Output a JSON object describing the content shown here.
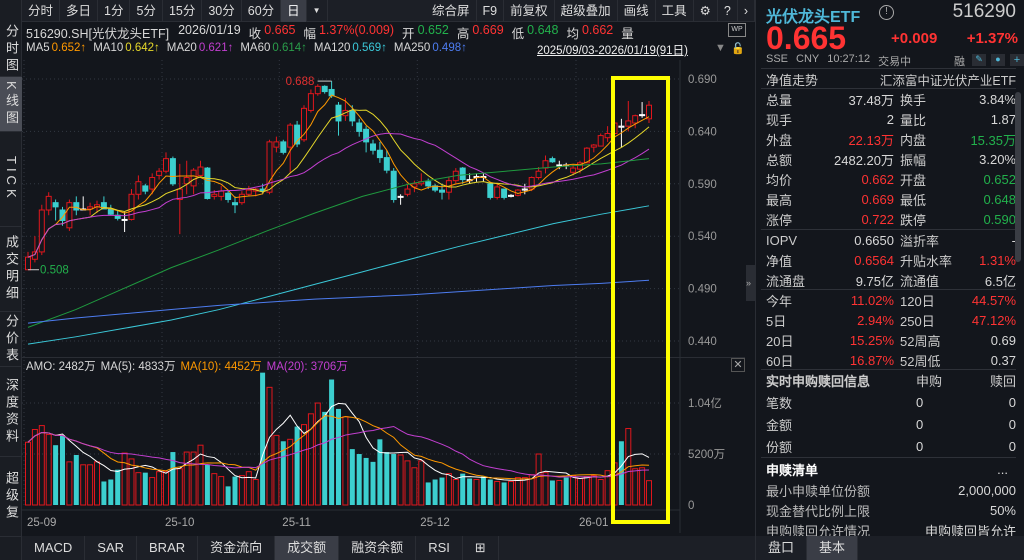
{
  "toolbar": {
    "periods": [
      "分时",
      "多日",
      "1分",
      "5分",
      "15分",
      "30分",
      "60分",
      "日"
    ],
    "active": "日",
    "right": [
      "综合屏",
      "F9",
      "前复权",
      "超级叠加",
      "画线",
      "工具"
    ]
  },
  "left_tabs": [
    "分时图",
    "K线图",
    "TICK",
    "成交明细",
    "分价表",
    "深度资料",
    "超级复"
  ],
  "quote_line": {
    "symbol": "516290.SH[光伏龙头ETF]",
    "date": "2026/01/19",
    "close_label": "收",
    "close": "0.665",
    "chg_label": "幅",
    "chg": "1.37%(0.009)",
    "open_label": "开",
    "open": "0.652",
    "high_label": "高",
    "high": "0.669",
    "low_label": "低",
    "low": "0.648",
    "avg_label": "均",
    "avg": "0.662",
    "vol_label": "量"
  },
  "ma_line": {
    "items": [
      {
        "label": "MA5",
        "value": "0.652↑",
        "color": "#ff9900"
      },
      {
        "label": "MA10",
        "value": "0.642↑",
        "color": "#e6d82a"
      },
      {
        "label": "MA20",
        "value": "0.621↑",
        "color": "#c23fd0"
      },
      {
        "label": "MA60",
        "value": "0.614↑",
        "color": "#2a9d4a"
      },
      {
        "label": "MA120",
        "value": "0.569↑",
        "color": "#3bc8d8"
      },
      {
        "label": "MA250",
        "value": "0.498↑",
        "color": "#4d7cf0"
      }
    ],
    "range": "2025/09/03-2026/01/19(91日)"
  },
  "chart_data": {
    "type": "candlestick",
    "price_ticks": [
      "0.690",
      "0.640",
      "0.590",
      "0.540",
      "0.490",
      "0.440"
    ],
    "ylim": [
      0.44,
      0.69
    ],
    "max_label": "0.688",
    "min_label": "0.508",
    "candles": [
      [
        0.508,
        0.525,
        0.508,
        0.52
      ],
      [
        0.518,
        0.54,
        0.515,
        0.525
      ],
      [
        0.525,
        0.57,
        0.522,
        0.565
      ],
      [
        0.565,
        0.582,
        0.56,
        0.578
      ],
      [
        0.572,
        0.575,
        0.555,
        0.568
      ],
      [
        0.565,
        0.568,
        0.55,
        0.555
      ],
      [
        0.548,
        0.575,
        0.545,
        0.572
      ],
      [
        0.572,
        0.578,
        0.56,
        0.565
      ],
      [
        0.566,
        0.578,
        0.565,
        0.566
      ],
      [
        0.566,
        0.572,
        0.56,
        0.568
      ],
      [
        0.568,
        0.574,
        0.562,
        0.57
      ],
      [
        0.572,
        0.578,
        0.566,
        0.566
      ],
      [
        0.566,
        0.57,
        0.56,
        0.561
      ],
      [
        0.56,
        0.565,
        0.555,
        0.557
      ],
      [
        0.556,
        0.563,
        0.544,
        0.556
      ],
      [
        0.556,
        0.585,
        0.555,
        0.58
      ],
      [
        0.58,
        0.598,
        0.575,
        0.592
      ],
      [
        0.588,
        0.59,
        0.58,
        0.583
      ],
      [
        0.585,
        0.6,
        0.58,
        0.596
      ],
      [
        0.598,
        0.605,
        0.594,
        0.602
      ],
      [
        0.602,
        0.62,
        0.6,
        0.614
      ],
      [
        0.614,
        0.616,
        0.588,
        0.59
      ],
      [
        0.575,
        0.609,
        0.542,
        0.585
      ],
      [
        0.59,
        0.612,
        0.58,
        0.596
      ],
      [
        0.588,
        0.605,
        0.58,
        0.603
      ],
      [
        0.598,
        0.612,
        0.598,
        0.606
      ],
      [
        0.605,
        0.606,
        0.575,
        0.576
      ],
      [
        0.578,
        0.584,
        0.575,
        0.58
      ],
      [
        0.578,
        0.588,
        0.574,
        0.583
      ],
      [
        0.581,
        0.584,
        0.572,
        0.575
      ],
      [
        0.572,
        0.578,
        0.562,
        0.57
      ],
      [
        0.572,
        0.583,
        0.57,
        0.58
      ],
      [
        0.58,
        0.588,
        0.578,
        0.584
      ],
      [
        0.583,
        0.586,
        0.578,
        0.585
      ],
      [
        0.585,
        0.59,
        0.58,
        0.583
      ],
      [
        0.582,
        0.632,
        0.58,
        0.63
      ],
      [
        0.625,
        0.635,
        0.62,
        0.63
      ],
      [
        0.63,
        0.632,
        0.618,
        0.62
      ],
      [
        0.625,
        0.648,
        0.6,
        0.646
      ],
      [
        0.646,
        0.65,
        0.625,
        0.628
      ],
      [
        0.632,
        0.665,
        0.63,
        0.662
      ],
      [
        0.66,
        0.68,
        0.658,
        0.676
      ],
      [
        0.676,
        0.685,
        0.674,
        0.683
      ],
      [
        0.683,
        0.684,
        0.676,
        0.678
      ],
      [
        0.68,
        0.688,
        0.672,
        0.674
      ],
      [
        0.665,
        0.668,
        0.636,
        0.65
      ],
      [
        0.655,
        0.672,
        0.65,
        0.66
      ],
      [
        0.66,
        0.665,
        0.645,
        0.65
      ],
      [
        0.648,
        0.652,
        0.635,
        0.64
      ],
      [
        0.642,
        0.645,
        0.62,
        0.63
      ],
      [
        0.628,
        0.632,
        0.618,
        0.622
      ],
      [
        0.622,
        0.63,
        0.61,
        0.615
      ],
      [
        0.615,
        0.622,
        0.6,
        0.603
      ],
      [
        0.602,
        0.605,
        0.572,
        0.575
      ],
      [
        0.578,
        0.58,
        0.57,
        0.578
      ],
      [
        0.58,
        0.59,
        0.578,
        0.585
      ],
      [
        0.587,
        0.593,
        0.582,
        0.59
      ],
      [
        0.59,
        0.6,
        0.588,
        0.592
      ],
      [
        0.592,
        0.595,
        0.585,
        0.588
      ],
      [
        0.588,
        0.59,
        0.582,
        0.584
      ],
      [
        0.584,
        0.59,
        0.575,
        0.582
      ],
      [
        0.582,
        0.597,
        0.575,
        0.593
      ],
      [
        0.593,
        0.605,
        0.59,
        0.602
      ],
      [
        0.605,
        0.606,
        0.59,
        0.594
      ],
      [
        0.594,
        0.6,
        0.59,
        0.593
      ],
      [
        0.596,
        0.6,
        0.592,
        0.597
      ],
      [
        0.597,
        0.6,
        0.592,
        0.596
      ],
      [
        0.59,
        0.592,
        0.575,
        0.577
      ],
      [
        0.577,
        0.59,
        0.575,
        0.587
      ],
      [
        0.585,
        0.585,
        0.575,
        0.577
      ],
      [
        0.578,
        0.58,
        0.577,
        0.579
      ],
      [
        0.579,
        0.585,
        0.578,
        0.584
      ],
      [
        0.584,
        0.59,
        0.58,
        0.585
      ],
      [
        0.585,
        0.597,
        0.583,
        0.596
      ],
      [
        0.596,
        0.606,
        0.594,
        0.602
      ],
      [
        0.605,
        0.617,
        0.6,
        0.612
      ],
      [
        0.614,
        0.616,
        0.61,
        0.611
      ],
      [
        0.608,
        0.612,
        0.604,
        0.608
      ],
      [
        0.608,
        0.61,
        0.604,
        0.607
      ],
      [
        0.601,
        0.608,
        0.598,
        0.605
      ],
      [
        0.604,
        0.612,
        0.6,
        0.61
      ],
      [
        0.61,
        0.625,
        0.61,
        0.624
      ],
      [
        0.625,
        0.628,
        0.62,
        0.627
      ],
      [
        0.626,
        0.638,
        0.626,
        0.636
      ],
      [
        0.634,
        0.645,
        0.63,
        0.638
      ],
      [
        0.638,
        0.65,
        0.636,
        0.648
      ],
      [
        0.645,
        0.652,
        0.625,
        0.644
      ],
      [
        0.645,
        0.669,
        0.64,
        0.65
      ],
      [
        0.648,
        0.656,
        0.643,
        0.655
      ],
      [
        0.656,
        0.668,
        0.653,
        0.656
      ],
      [
        0.652,
        0.669,
        0.648,
        0.665
      ]
    ],
    "ma_long": {
      "MA60": [
        0.453,
        0.47,
        0.49,
        0.51,
        0.527,
        0.545,
        0.562,
        0.578,
        0.59,
        0.598,
        0.602,
        0.606,
        0.609,
        0.614
      ],
      "MA120": [
        0.437,
        0.444,
        0.452,
        0.46,
        0.47,
        0.482,
        0.494,
        0.506,
        0.518,
        0.53,
        0.541,
        0.552,
        0.561,
        0.569
      ],
      "MA250": [
        0.457,
        0.462,
        0.466,
        0.47,
        0.474,
        0.477,
        0.48,
        0.482,
        0.484,
        0.487,
        0.49,
        0.493,
        0.495,
        0.498
      ]
    },
    "volume": {
      "header": {
        "amo": "AMO: 2482万",
        "ma5": "MA(5): 4833万",
        "ma10": "MA(10): 4452万",
        "ma20": "MA(20): 3706万"
      },
      "ticks": [
        "1.04亿",
        "5200万",
        "0"
      ],
      "values": [
        6400,
        7700,
        8100,
        7200,
        6100,
        7100,
        4400,
        5100,
        4100,
        4100,
        4400,
        2400,
        2600,
        3600,
        5300,
        4700,
        3300,
        3300,
        2800,
        3400,
        3400,
        5400,
        3700,
        5400,
        5400,
        6100,
        4100,
        3200,
        2900,
        1900,
        2900,
        3000,
        3400,
        2600,
        13500,
        12000,
        7100,
        6500,
        6700,
        8000,
        8200,
        9300,
        10400,
        9500,
        12800,
        9800,
        9000,
        5700,
        5200,
        4800,
        4400,
        6700,
        5400,
        5200,
        5100,
        4500,
        3800,
        4500,
        2300,
        2600,
        2800,
        3200,
        2600,
        3200,
        2700,
        2600,
        2900,
        2600,
        2400,
        2300,
        2400,
        2800,
        2800,
        3100,
        5200,
        3300,
        2500,
        2500,
        2800,
        3000,
        2700,
        2900,
        3000,
        2600,
        3500,
        4300,
        6500,
        7800,
        3700,
        3800,
        2482
      ]
    },
    "x_labels": [
      {
        "label": "25-09",
        "index": 0
      },
      {
        "label": "25-10",
        "index": 20
      },
      {
        "label": "25-11",
        "index": 37
      },
      {
        "label": "25-12",
        "index": 57
      },
      {
        "label": "26-01",
        "index": 80
      }
    ],
    "colors": {
      "up": "#e0161c",
      "down": "#3ccfcf",
      "ma5": "#ff9900",
      "ma10": "#e6d82a",
      "ma20": "#c23fd0",
      "ma60": "#1f9a3f",
      "ma120": "#3bc8d8",
      "ma250": "#4d7cf0",
      "highlight": "#ffff00"
    }
  },
  "bottom_tabs": [
    "MACD",
    "SAR",
    "BRAR",
    "资金流向",
    "成交额",
    "融资余额",
    "RSI"
  ],
  "bottom_active": "成交额",
  "panel": {
    "name": "光伏龙头ETF",
    "code": "516290",
    "price": "0.665",
    "change": "+0.009",
    "pct": "+1.37%",
    "exchange": "SSE",
    "currency": "CNY",
    "time": "10:27:12",
    "status": "交易中",
    "margin": "融",
    "nav_label": "净值走势",
    "fund_name": "汇添富中证光伏产业ETF",
    "rows1": [
      [
        "总量",
        "37.48万",
        "",
        "换手",
        "3.84%",
        ""
      ],
      [
        "现手",
        "2",
        "",
        "量比",
        "1.87",
        ""
      ],
      [
        "外盘",
        "22.13万",
        "r",
        "内盘",
        "15.35万",
        "g"
      ],
      [
        "总额",
        "2482.20万",
        "",
        "振幅",
        "3.20%",
        ""
      ],
      [
        "均价",
        "0.662",
        "r",
        "开盘",
        "0.652",
        "g"
      ],
      [
        "最高",
        "0.669",
        "r",
        "最低",
        "0.648",
        "g"
      ],
      [
        "涨停",
        "0.722",
        "r",
        "跌停",
        "0.590",
        "g"
      ]
    ],
    "rows2": [
      [
        "IOPV",
        "0.6650",
        "",
        "溢折率",
        "-",
        ""
      ],
      [
        "净值",
        "0.6564",
        "r",
        "升贴水率",
        "1.31%",
        "r"
      ],
      [
        "流通盘",
        "9.75亿",
        "",
        "流通值",
        "6.5亿",
        ""
      ]
    ],
    "rows3": [
      [
        "今年",
        "11.02%",
        "r",
        "120日",
        "44.57%",
        "r"
      ],
      [
        "5日",
        "2.94%",
        "r",
        "250日",
        "47.12%",
        "r"
      ],
      [
        "20日",
        "15.25%",
        "r",
        "52周高",
        "0.69",
        ""
      ],
      [
        "60日",
        "16.87%",
        "r",
        "52周低",
        "0.37",
        ""
      ]
    ],
    "sub": {
      "title": "实时申购赎回信息",
      "col1": "申购",
      "col2": "赎回",
      "rows": [
        [
          "笔数",
          "0",
          "0"
        ],
        [
          "金额",
          "0",
          "0"
        ],
        [
          "份额",
          "0",
          "0"
        ]
      ]
    },
    "list": {
      "title": "申赎清单",
      "more": "...",
      "rows": [
        [
          "最小申赎单位份额",
          "2,000,000"
        ],
        [
          "现金替代比例上限",
          "50%"
        ],
        [
          "申购赎回允许情况",
          "申购赎回皆允许"
        ]
      ]
    },
    "tabs": [
      "盘口",
      "基本"
    ],
    "active_tab": "基本"
  }
}
